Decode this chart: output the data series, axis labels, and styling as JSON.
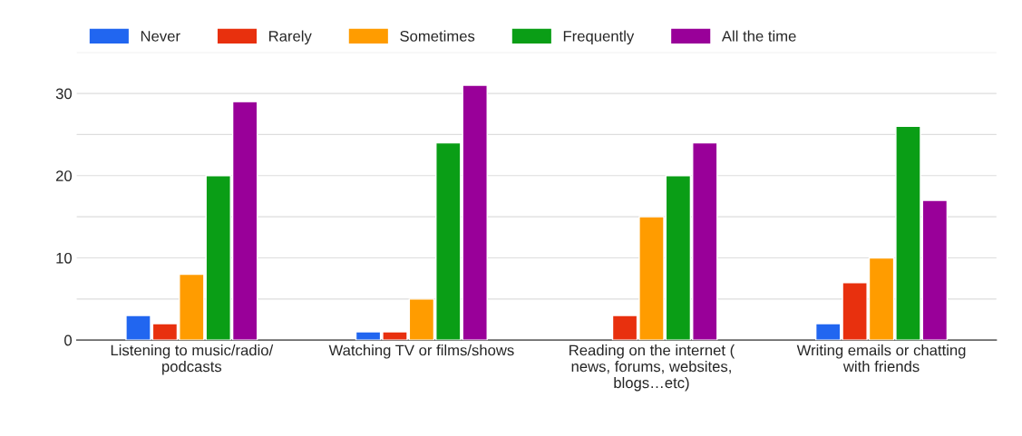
{
  "chart_data": {
    "type": "bar",
    "categories": [
      "Listening to music/radio/ podcasts",
      "Watching TV or films/shows",
      "Reading on the internet ( news, forums, websites, blogs…etc)",
      "Writing emails or chatting with friends"
    ],
    "series": [
      {
        "name": "Never",
        "color": "#2166f0",
        "values": [
          3,
          1,
          null,
          2
        ]
      },
      {
        "name": "Rarely",
        "color": "#e8300e",
        "values": [
          2,
          1,
          3,
          7
        ]
      },
      {
        "name": "Sometimes",
        "color": "#ff9c00",
        "values": [
          8,
          5,
          15,
          10
        ]
      },
      {
        "name": "Frequently",
        "color": "#0a9e16",
        "values": [
          20,
          24,
          20,
          26
        ]
      },
      {
        "name": "All the time",
        "color": "#990099",
        "values": [
          29,
          31,
          24,
          17
        ]
      }
    ],
    "ylim": [
      0,
      35
    ],
    "yticks": [
      0,
      {
        "value": 5,
        "label": null
      },
      10,
      {
        "value": 15,
        "label": null
      },
      20,
      {
        "value": 25,
        "label": null
      },
      30,
      {
        "value": 35,
        "label": null
      }
    ],
    "grid": "y",
    "legend": "top left"
  }
}
